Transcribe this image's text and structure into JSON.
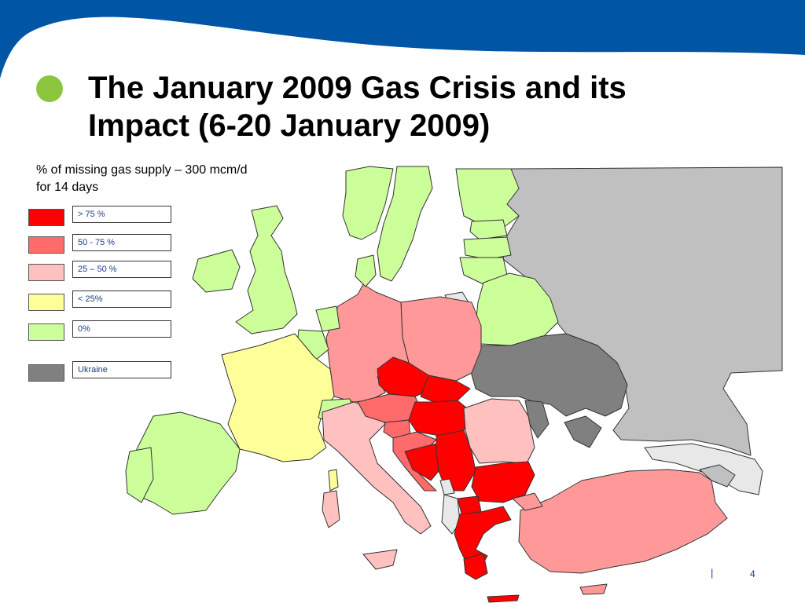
{
  "slide": {
    "title": "The January 2009 Gas Crisis and its Impact (6-20 January 2009)",
    "subtitle": "% of missing gas supply – 300 mcm/d for 14 days",
    "page_number": "4",
    "footer_separator": "|"
  },
  "colors": {
    "banner": "#0055a5",
    "bullet": "#8cc63f",
    "gt75": "#ff0000",
    "r50_75": "#ff6b6b",
    "r25_50": "#ffc0c0",
    "lt25": "#ffff99",
    "zero": "#ccff99",
    "ukraine": "#808080",
    "russia": "#c0c0c0",
    "nodata": "#e8e8e8"
  },
  "legend": [
    {
      "label": "> 75 %",
      "color": "#ff0000"
    },
    {
      "label": "50 - 75 %",
      "color": "#ff6b6b"
    },
    {
      "label": "25 – 50 %",
      "color": "#ffc0c0"
    },
    {
      "label": "< 25%",
      "color": "#ffff99"
    },
    {
      "label": "0%",
      "color": "#ccff99"
    },
    {
      "label": "Ukraine",
      "color": "#808080"
    }
  ]
}
